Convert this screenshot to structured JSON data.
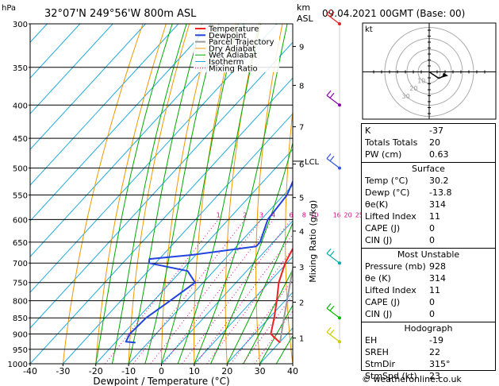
{
  "header": {
    "pressure_unit": "hPa",
    "location": "32°07'N 249°56'W 800m ASL",
    "km_unit": "km",
    "asl": "ASL",
    "datetime": "09.04.2021 00GMT (Base: 00)"
  },
  "credit": "© weatheronline.co.uk",
  "colors": {
    "temperature": "#ee2222",
    "dewpoint": "#2244dd",
    "parcel": "#999999",
    "dry_adiabat": "#ee9900",
    "wet_adiabat": "#00aa00",
    "isotherm": "#22aadd",
    "mixing_ratio": "#dd0088",
    "wind_barbs": [
      "#dd2222",
      "#8800aa",
      "#3355dd",
      "#00aaaa",
      "#00bb00",
      "#cccc00"
    ]
  },
  "chart_data": [
    {
      "type": "line",
      "subtype": "skew-T log-p sounding",
      "xlabel": "Dewpoint / Temperature (°C)",
      "ylabel": "hPa",
      "xlim": [
        -40,
        40
      ],
      "ylim": [
        1000,
        300
      ],
      "y_scale": "log",
      "x_ticks": [
        -40,
        -30,
        -20,
        -10,
        0,
        10,
        20,
        30,
        40
      ],
      "pressure_ticks": [
        300,
        350,
        400,
        450,
        500,
        550,
        600,
        650,
        700,
        750,
        800,
        850,
        900,
        950,
        1000
      ],
      "km_label": "km",
      "km_ticks": [
        {
          "km": 1,
          "p": 913
        },
        {
          "km": 2,
          "p": 804
        },
        {
          "km": 3,
          "p": 710
        },
        {
          "km": 4,
          "p": 625
        },
        {
          "km": 5,
          "p": 555
        },
        {
          "km": 6,
          "p": 493
        },
        {
          "km": 7,
          "p": 432
        },
        {
          "km": 8,
          "p": 373
        },
        {
          "km": 9,
          "p": 325
        }
      ],
      "lcl_label": "LCL",
      "lcl_pressure": 488,
      "right_axis_label": "Mixing Ratio (g/kg)",
      "mixing_ratio_values": [
        "1",
        "2",
        "3",
        "4",
        "6",
        "8",
        "10",
        "16",
        "20",
        "25"
      ],
      "mixing_ratio_g": [
        1,
        2,
        3,
        4,
        6,
        8,
        10,
        16,
        20,
        25
      ],
      "legend": [
        "Temperature",
        "Dewpoint",
        "Parcel Trajectory",
        "Dry Adiabat",
        "Wet Adiabat",
        "Isotherm",
        "Mixing Ratio"
      ],
      "grid": true,
      "series": [
        {
          "name": "Temperature",
          "points": [
            [
              928,
              30.2
            ],
            [
              900,
              25
            ],
            [
              850,
              21.5
            ],
            [
              800,
              17.5
            ],
            [
              750,
              13
            ],
            [
              700,
              9.5
            ],
            [
              650,
              7
            ],
            [
              600,
              4
            ],
            [
              550,
              -0.5
            ],
            [
              500,
              -4.5
            ],
            [
              450,
              -10.5
            ],
            [
              400,
              -17.5
            ],
            [
              370,
              -19
            ],
            [
              350,
              -20.5
            ],
            [
              300,
              -29
            ]
          ]
        },
        {
          "name": "Dewpoint",
          "points": [
            [
              928,
              -13.8
            ],
            [
              925,
              -17
            ],
            [
              900,
              -18
            ],
            [
              850,
              -17.5
            ],
            [
              800,
              -15
            ],
            [
              750,
              -12.5
            ],
            [
              720,
              -18
            ],
            [
              700,
              -32
            ],
            [
              690,
              -33
            ],
            [
              680,
              -21
            ],
            [
              660,
              -4
            ],
            [
              650,
              -4
            ],
            [
              600,
              -8
            ],
            [
              550,
              -9
            ],
            [
              500,
              -13
            ],
            [
              470,
              -15
            ],
            [
              450,
              -14.5
            ],
            [
              420,
              -14
            ],
            [
              400,
              -10
            ],
            [
              380,
              -13
            ],
            [
              350,
              -33
            ],
            [
              330,
              -28
            ],
            [
              300,
              -23
            ]
          ]
        },
        {
          "name": "Parcel Trajectory",
          "points": [
            [
              928,
              30.2
            ],
            [
              850,
              24.5
            ],
            [
              750,
              16.5
            ],
            [
              650,
              7.5
            ],
            [
              600,
              3.5
            ],
            [
              550,
              -0.5
            ],
            [
              500,
              -4
            ],
            [
              488,
              -4.8
            ],
            [
              450,
              -8.5
            ],
            [
              400,
              -13.5
            ],
            [
              350,
              -19
            ],
            [
              300,
              -26
            ]
          ]
        }
      ]
    },
    {
      "type": "scatter",
      "subtype": "hodograph",
      "title": "kt",
      "ring_labels": [
        "10",
        "20",
        "30"
      ],
      "points": [
        [
          0,
          0
        ],
        [
          3,
          -2
        ],
        [
          6,
          -4
        ],
        [
          11,
          -2
        ]
      ]
    },
    {
      "type": "table",
      "rows": [
        {
          "label": "K",
          "value": "-37"
        },
        {
          "label": "Totals Totals",
          "value": "20"
        },
        {
          "label": "PW (cm)",
          "value": "0.63"
        }
      ],
      "sections": [
        {
          "title": "Surface",
          "rows": [
            {
              "label": "Temp (°C)",
              "value": "30.2"
            },
            {
              "label": "Dewp (°C)",
              "value": "-13.8"
            },
            {
              "label": "θe(K)",
              "value": "314"
            },
            {
              "label": "Lifted Index",
              "value": "11"
            },
            {
              "label": "CAPE (J)",
              "value": "0"
            },
            {
              "label": "CIN (J)",
              "value": "0"
            }
          ]
        },
        {
          "title": "Most Unstable",
          "rows": [
            {
              "label": "Pressure (mb)",
              "value": "928"
            },
            {
              "label": "θe (K)",
              "value": "314"
            },
            {
              "label": "Lifted Index",
              "value": "11"
            },
            {
              "label": "CAPE (J)",
              "value": "0"
            },
            {
              "label": "CIN (J)",
              "value": "0"
            }
          ]
        },
        {
          "title": "Hodograph",
          "rows": [
            {
              "label": "EH",
              "value": "-19"
            },
            {
              "label": "SREH",
              "value": "22"
            },
            {
              "label": "StmDir",
              "value": "315°"
            },
            {
              "label": "StmSpd (kt)",
              "value": "23"
            }
          ]
        }
      ]
    }
  ]
}
